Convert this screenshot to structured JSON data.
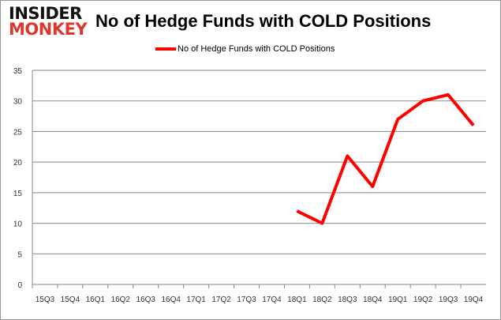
{
  "logo": {
    "line1": "INSIDER",
    "line2": "MONKEY"
  },
  "chart_data": {
    "type": "line",
    "title": "No of Hedge Funds with COLD Positions",
    "categories": [
      "15Q3",
      "15Q4",
      "16Q1",
      "16Q2",
      "16Q3",
      "16Q4",
      "17Q1",
      "17Q2",
      "17Q3",
      "17Q4",
      "18Q1",
      "18Q2",
      "18Q3",
      "18Q4",
      "19Q1",
      "19Q2",
      "19Q3",
      "19Q4"
    ],
    "series": [
      {
        "name": "No of Hedge Funds with COLD Positions",
        "color": "#ff0000",
        "values": [
          null,
          null,
          null,
          null,
          null,
          null,
          null,
          null,
          null,
          null,
          12,
          10,
          21,
          16,
          27,
          30,
          31,
          26
        ]
      }
    ],
    "ylim": [
      0,
      35
    ],
    "yticks": [
      0,
      5,
      10,
      15,
      20,
      25,
      30,
      35
    ],
    "grid": true,
    "legend": "top-center"
  }
}
